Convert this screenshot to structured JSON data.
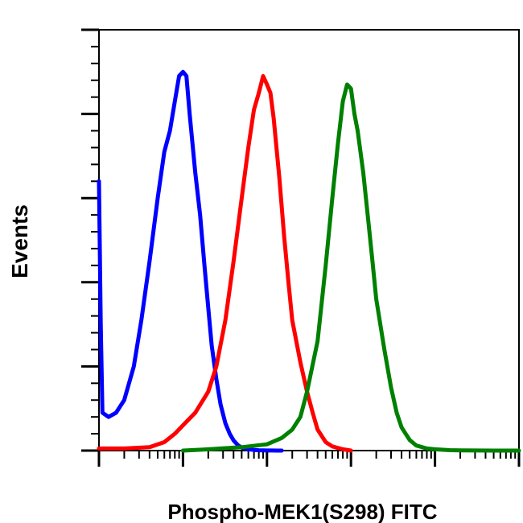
{
  "chart_data": {
    "type": "line",
    "title": "",
    "xlabel": "Phospho-MEK1(S298) FITC",
    "ylabel": "Events",
    "x_scale": "log",
    "xlim": [
      1,
      100000
    ],
    "ylim": [
      0,
      100
    ],
    "grid": false,
    "legend": "none",
    "series": [
      {
        "color": "#0000ff",
        "x": [
          1,
          1.05,
          1.1,
          1.3,
          1.6,
          2,
          2.6,
          3.2,
          4,
          5,
          6,
          7,
          8,
          9,
          10,
          11,
          12,
          14,
          16,
          18,
          20,
          22,
          25,
          28,
          32,
          36,
          40,
          45,
          50,
          60,
          70,
          80,
          90,
          100,
          115,
          130,
          150
        ],
        "y": [
          64,
          30,
          9,
          8,
          9,
          12,
          20,
          31,
          45,
          60,
          71,
          76,
          83,
          89,
          90,
          89,
          80,
          66,
          56,
          44,
          34,
          25,
          17,
          11,
          6.5,
          4,
          2.4,
          1.3,
          0.7,
          0.3,
          0.15,
          0.08,
          0.04,
          0.02,
          0.01,
          0,
          0
        ]
      },
      {
        "color": "#ff0000",
        "x": [
          1,
          2,
          4,
          6,
          8,
          10,
          14,
          20,
          25,
          32,
          40,
          50,
          60,
          70,
          80,
          90,
          100,
          110,
          120,
          140,
          160,
          180,
          200,
          250,
          300,
          350,
          400,
          500,
          600,
          800,
          1000
        ],
        "y": [
          0.5,
          0.5,
          0.8,
          2,
          4,
          6,
          9,
          14,
          20,
          31,
          45,
          60,
          72,
          81,
          85,
          89,
          87,
          85,
          79,
          65,
          51,
          40,
          31,
          21,
          14,
          9,
          5,
          2,
          1,
          0.3,
          0
        ]
      },
      {
        "color": "#008000",
        "x": [
          10,
          20,
          50,
          100,
          150,
          200,
          250,
          300,
          400,
          500,
          600,
          700,
          800,
          900,
          1000,
          1100,
          1200,
          1400,
          1600,
          1800,
          2000,
          2500,
          3000,
          3500,
          4000,
          5000,
          6000,
          8000,
          10000,
          15000,
          20000,
          50000,
          100000
        ],
        "y": [
          0,
          0.3,
          0.8,
          1.5,
          3,
          5,
          8,
          14,
          26,
          44,
          60,
          73,
          83,
          87,
          86,
          80,
          76,
          66,
          55,
          45,
          36,
          24,
          15,
          9,
          5.5,
          2.5,
          1.2,
          0.5,
          0.3,
          0.1,
          0.05,
          0,
          0
        ]
      }
    ]
  }
}
